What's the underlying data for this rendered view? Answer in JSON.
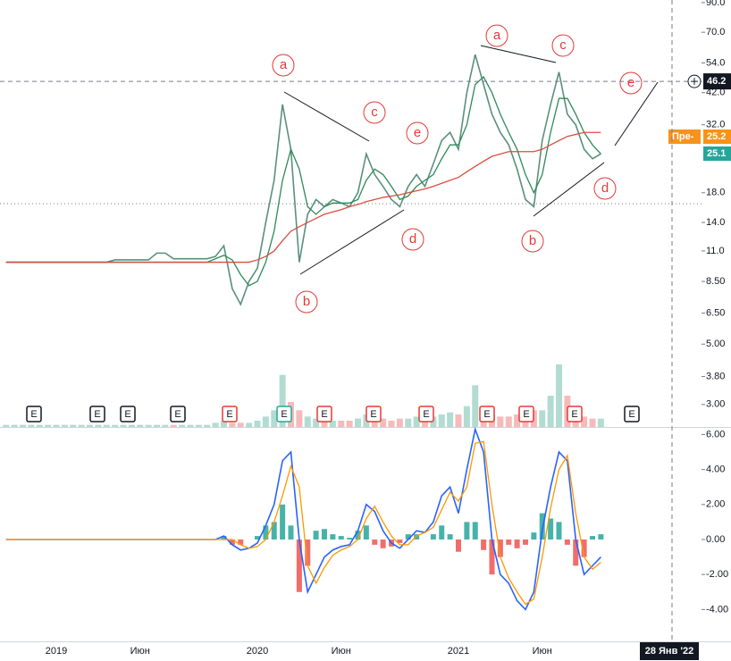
{
  "chart_data": [
    {
      "type": "line",
      "log_scale": true,
      "ylim": [
        2.48,
        92
      ],
      "yticks": [
        {
          "value": 90,
          "label": "90.0"
        },
        {
          "value": 70,
          "label": "70.0"
        },
        {
          "value": 54,
          "label": "54.0"
        },
        {
          "value": 42,
          "label": "42.0"
        },
        {
          "value": 32,
          "label": "32.0"
        },
        {
          "value": 18,
          "label": "18.0"
        },
        {
          "value": 14,
          "label": "14.0"
        },
        {
          "value": 11,
          "label": "11.0"
        },
        {
          "value": 8.5,
          "label": "8.50"
        },
        {
          "value": 6.5,
          "label": "6.50"
        },
        {
          "value": 5,
          "label": "5.00"
        },
        {
          "value": 3.8,
          "label": "3.80"
        },
        {
          "value": 3,
          "label": "3.00"
        }
      ],
      "series": [
        {
          "color": "#5b8f7e",
          "values": [
            10,
            10,
            10,
            10,
            10,
            10,
            10,
            10,
            10,
            10,
            10,
            10,
            10,
            10.2,
            10.2,
            10.2,
            10.2,
            10.2,
            10.8,
            10.8,
            10.3,
            10.3,
            10.3,
            10.3,
            10.3,
            10.5,
            11.5,
            8,
            7,
            8.5,
            9.5,
            14,
            20,
            38,
            26,
            10,
            15,
            17,
            16,
            17,
            16.5,
            16,
            18,
            25,
            21,
            19,
            17,
            16,
            19,
            21,
            19,
            23,
            28,
            30,
            26,
            42,
            58,
            45,
            35,
            30,
            27,
            22,
            17,
            16,
            28,
            38,
            50,
            35,
            32,
            26,
            24,
            25
          ]
        },
        {
          "color": "#2e8b57",
          "values": [
            10,
            10,
            10,
            10,
            10,
            10,
            10,
            10,
            10,
            10,
            10,
            10,
            10,
            10,
            10,
            10,
            10,
            10,
            10,
            10,
            10,
            10,
            10,
            10,
            10,
            10.3,
            10.6,
            10.2,
            9,
            8.2,
            8.5,
            10,
            13,
            20,
            26,
            22,
            16,
            15,
            16,
            16.5,
            16.5,
            16.5,
            17,
            20,
            22,
            21,
            19,
            17,
            17.5,
            19,
            20,
            21,
            24,
            27,
            27,
            32,
            45,
            48,
            42,
            35,
            30,
            26,
            21,
            18,
            21,
            30,
            40,
            40,
            35,
            30,
            27,
            25
          ]
        },
        {
          "color": "#d84f3f",
          "values": [
            10,
            10,
            10,
            10,
            10,
            10,
            10,
            10,
            10,
            10,
            10,
            10,
            10,
            10,
            10,
            10,
            10,
            10,
            10,
            10,
            10,
            10,
            10,
            10,
            10,
            10,
            10,
            10,
            10,
            10,
            10.2,
            10.5,
            11,
            12,
            13,
            13.5,
            14,
            14.5,
            15,
            15.3,
            15.6,
            16,
            16.3,
            16.7,
            17,
            17.3,
            17.5,
            17.7,
            18,
            18.3,
            18.6,
            19,
            19.5,
            20,
            20.5,
            21.5,
            22.5,
            23.5,
            24.5,
            25,
            25.5,
            25.5,
            25.5,
            25.5,
            26,
            27,
            28,
            29,
            29.5,
            30,
            30,
            30
          ]
        }
      ],
      "volume": {
        "up_color": "#9fd3c7",
        "down_color": "#f5a9a9",
        "values": [
          1,
          1,
          1,
          1,
          1,
          1,
          1,
          1,
          1,
          1,
          1,
          1,
          1,
          1,
          1,
          1,
          1,
          1,
          1,
          1,
          1,
          1,
          1,
          1,
          1,
          2,
          3,
          2,
          2,
          2,
          3,
          5,
          8,
          25,
          12,
          8,
          5,
          4,
          3,
          3,
          3,
          3,
          4,
          6,
          5,
          4,
          3,
          4,
          4,
          5,
          4,
          5,
          6,
          7,
          6,
          10,
          20,
          10,
          6,
          5,
          5,
          6,
          10,
          8,
          8,
          15,
          30,
          15,
          8,
          5,
          4,
          4
        ]
      },
      "annotations": [
        "a",
        "c",
        "e",
        "d",
        "b",
        "a",
        "c",
        "e",
        "d",
        "b"
      ],
      "earnings_markers": [
        {
          "label": "E",
          "color": "#131722"
        },
        {
          "label": "E",
          "color": "#131722"
        },
        {
          "label": "E",
          "color": "#131722"
        },
        {
          "label": "E",
          "color": "#131722"
        },
        {
          "label": "E",
          "color": "#e53935"
        },
        {
          "label": "E",
          "color": "#26a69a"
        },
        {
          "label": "E",
          "color": "#e53935"
        },
        {
          "label": "E",
          "color": "#e53935"
        },
        {
          "label": "E",
          "color": "#e53935"
        },
        {
          "label": "E",
          "color": "#e53935"
        },
        {
          "label": "E",
          "color": "#e53935"
        },
        {
          "label": "E",
          "color": "#e53935"
        },
        {
          "label": "E",
          "color": "#131722"
        }
      ],
      "crosshair": {
        "value": 46.2,
        "label": "46.2"
      },
      "price_tags": [
        {
          "label": "Пре-",
          "color": "#f7931a"
        },
        {
          "label": "25.2",
          "color": "#f7931a"
        },
        {
          "label": "25.1",
          "color": "#26a69a"
        }
      ]
    },
    {
      "type": "line",
      "ylim": [
        -5.82,
        6.38
      ],
      "yticks": [
        {
          "value": 6,
          "label": "6.00"
        },
        {
          "value": 4,
          "label": "4.00"
        },
        {
          "value": 2,
          "label": "2.00"
        },
        {
          "value": 0,
          "label": "0.00"
        },
        {
          "value": -2,
          "label": "-2.00"
        },
        {
          "value": -4,
          "label": "-4.00"
        }
      ],
      "categories": [
        null,
        null,
        null,
        null,
        null,
        null,
        "2019",
        null,
        null,
        null,
        null,
        null,
        null,
        null,
        null,
        null,
        "Июн",
        null,
        null,
        null,
        null,
        null,
        null,
        null,
        null,
        null,
        null,
        null,
        null,
        null,
        "2020",
        null,
        null,
        null,
        null,
        null,
        null,
        null,
        null,
        null,
        "Июн",
        null,
        null,
        null,
        null,
        null,
        null,
        null,
        null,
        null,
        null,
        null,
        null,
        null,
        "2021",
        null,
        null,
        null,
        null,
        null,
        null,
        null,
        null,
        null,
        "Июн",
        null,
        null,
        null,
        null,
        null,
        null,
        null
      ],
      "series": [
        {
          "color": "#2962ff",
          "values": [
            0,
            0,
            0,
            0,
            0,
            0,
            0,
            0,
            0,
            0,
            0,
            0,
            0,
            0,
            0,
            0,
            0,
            0,
            0,
            0,
            0,
            0,
            0,
            0,
            0,
            0,
            0.2,
            -0.3,
            -0.6,
            -0.5,
            -0.2,
            0.8,
            2,
            4.5,
            5,
            0,
            -3,
            -2,
            -1,
            -0.6,
            -0.4,
            -0.3,
            0.5,
            2,
            1.6,
            0.5,
            -0.2,
            -0.5,
            0,
            0.5,
            0.4,
            1,
            2.5,
            3,
            1.5,
            4,
            6.3,
            5,
            0,
            -2,
            -2.5,
            -3.5,
            -4,
            -3,
            0.5,
            3,
            5,
            4.5,
            0,
            -2,
            -1.5,
            -1
          ]
        },
        {
          "color": "#ff9800",
          "values": [
            0,
            0,
            0,
            0,
            0,
            0,
            0,
            0,
            0,
            0,
            0,
            0,
            0,
            0,
            0,
            0,
            0,
            0,
            0,
            0,
            0,
            0,
            0,
            0,
            0,
            0,
            0,
            0,
            -0.3,
            -0.5,
            -0.4,
            0,
            1,
            2.5,
            4.2,
            3,
            -1.5,
            -2.5,
            -1.6,
            -0.9,
            -0.6,
            -0.4,
            0,
            1.2,
            1.9,
            1,
            0.2,
            -0.3,
            -0.3,
            0.2,
            0.4,
            0.7,
            1.7,
            2.7,
            2.2,
            3,
            5.5,
            5.6,
            2,
            -1,
            -2.2,
            -3,
            -3.7,
            -3.4,
            -1,
            1.8,
            4,
            4.8,
            1.5,
            -1,
            -1.7,
            -1.3
          ]
        }
      ],
      "histogram": {
        "up_color": "#26a69a",
        "down_color": "#ef5350",
        "values": [
          0,
          0,
          0,
          0,
          0,
          0,
          0,
          0,
          0,
          0,
          0,
          0,
          0,
          0,
          0,
          0,
          0,
          0,
          0,
          0,
          0,
          0,
          0,
          0,
          0,
          0,
          0.2,
          -0.3,
          -0.3,
          0,
          0.2,
          0.8,
          1,
          2,
          0.8,
          -3,
          -1.5,
          0.5,
          0.6,
          0.3,
          0.2,
          0.1,
          0.5,
          0.8,
          -0.3,
          -0.5,
          -0.4,
          -0.2,
          0.3,
          0.3,
          0,
          0.3,
          0.8,
          0.3,
          -0.7,
          1,
          1,
          -0.6,
          -2,
          -1,
          -0.3,
          -0.5,
          -0.3,
          0.4,
          1.5,
          1.2,
          1,
          -0.3,
          -1.5,
          -1,
          0.2,
          0.3
        ]
      },
      "crosshair_date": "28 Янв '22"
    }
  ]
}
